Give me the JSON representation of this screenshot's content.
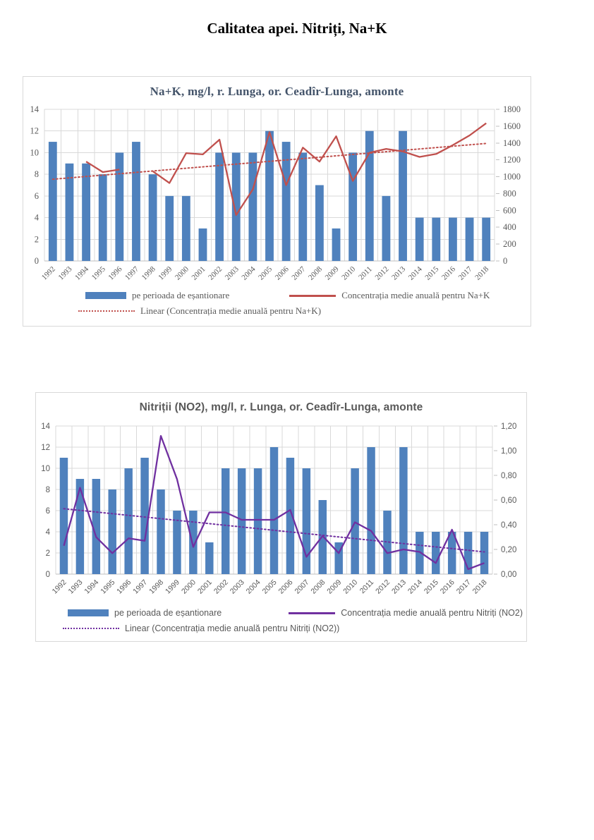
{
  "page": {
    "title": "Calitatea apei. Nitriți, Na+K"
  },
  "chart_data": [
    {
      "type": "bar",
      "title": "Na+K, mg/l, r. Lunga, or. Ceadîr-Lunga, amonte",
      "categories": [
        "1992",
        "1993",
        "1994",
        "1995",
        "1996",
        "1997",
        "1998",
        "1999",
        "2000",
        "2001",
        "2002",
        "2003",
        "2004",
        "2005",
        "2006",
        "2007",
        "2008",
        "2009",
        "2010",
        "2011",
        "2012",
        "2013",
        "2014",
        "2015",
        "2016",
        "2017",
        "2018"
      ],
      "left_axis": {
        "min": 0,
        "max": 14,
        "step": 2,
        "labels": [
          "0",
          "2",
          "4",
          "6",
          "8",
          "10",
          "12",
          "14"
        ]
      },
      "right_axis": {
        "min": 0,
        "max": 1800,
        "step": 200,
        "labels": [
          "0",
          "200",
          "400",
          "600",
          "800",
          "1000",
          "1200",
          "1400",
          "1600",
          "1800"
        ]
      },
      "series": [
        {
          "name": "pe perioada de eșantionare",
          "type": "bar",
          "axis": "left",
          "color": "#4f81bd",
          "values": [
            11,
            9,
            9,
            8,
            10,
            11,
            8,
            6,
            6,
            3,
            10,
            10,
            10,
            12,
            11,
            10,
            7,
            3,
            10,
            12,
            6,
            12,
            4,
            4,
            4,
            4,
            4
          ]
        },
        {
          "name": "Concentrația medie  anuală  pentru Na+K",
          "type": "line",
          "axis": "right",
          "color": "#c0504d",
          "values": [
            null,
            null,
            1180,
            1055,
            1085,
            null,
            1065,
            925,
            1280,
            1265,
            1440,
            545,
            850,
            1530,
            900,
            1345,
            1180,
            1480,
            950,
            1285,
            1330,
            1300,
            1235,
            1270,
            1375,
            1490,
            1635
          ]
        },
        {
          "name": "Linear (Concentrația  medie  anuală  pentru Na+K)",
          "type": "trend",
          "axis": "right",
          "color": "#c0504d",
          "trend_start": 970,
          "trend_end": 1395
        }
      ],
      "grid_color": "#d9d9d9",
      "axis_color": "#bfbfbf",
      "text_color": "#595959"
    },
    {
      "type": "bar",
      "title": "Nitriții (NO2), mg/l, r. Lunga, or. Ceadîr-Lunga, amonte",
      "categories": [
        "1992",
        "1993",
        "1994",
        "1995",
        "1996",
        "1997",
        "1998",
        "1999",
        "2000",
        "2001",
        "2002",
        "2003",
        "2004",
        "2005",
        "2006",
        "2007",
        "2008",
        "2009",
        "2010",
        "2011",
        "2012",
        "2013",
        "2014",
        "2015",
        "2016",
        "2017",
        "2018"
      ],
      "left_axis": {
        "min": 0,
        "max": 14,
        "step": 2,
        "labels": [
          "0",
          "2",
          "4",
          "6",
          "8",
          "10",
          "12",
          "14"
        ]
      },
      "right_axis": {
        "min": 0,
        "max": 1.2,
        "step": 0.2,
        "labels": [
          "0,00",
          "0,20",
          "0,40",
          "0,60",
          "0,80",
          "1,00",
          "1,20"
        ]
      },
      "series": [
        {
          "name": "pe perioada de eșantionare",
          "type": "bar",
          "axis": "left",
          "color": "#4f81bd",
          "values": [
            11,
            9,
            9,
            8,
            10,
            11,
            8,
            6,
            6,
            3,
            10,
            10,
            10,
            12,
            11,
            10,
            7,
            3,
            10,
            12,
            6,
            12,
            4,
            4,
            4,
            4,
            4
          ]
        },
        {
          "name": "Concentrația medie anuală pentru Nitriți (NO2)",
          "type": "line",
          "axis": "right",
          "color": "#7030a0",
          "values": [
            0.23,
            0.7,
            0.3,
            0.17,
            0.29,
            0.27,
            1.12,
            0.77,
            0.22,
            0.5,
            0.5,
            0.44,
            0.44,
            0.44,
            0.52,
            0.14,
            0.31,
            0.17,
            0.42,
            0.35,
            0.17,
            0.2,
            0.18,
            0.09,
            0.36,
            0.04,
            0.09
          ]
        },
        {
          "name": "Linear (Concentrația medie anuală pentru Nitriți (NO2))",
          "type": "trend",
          "axis": "right",
          "color": "#7030a0",
          "trend_start": 0.53,
          "trend_end": 0.18
        }
      ],
      "grid_color": "#d9d9d9",
      "axis_color": "#bfbfbf",
      "text_color": "#595959"
    }
  ]
}
